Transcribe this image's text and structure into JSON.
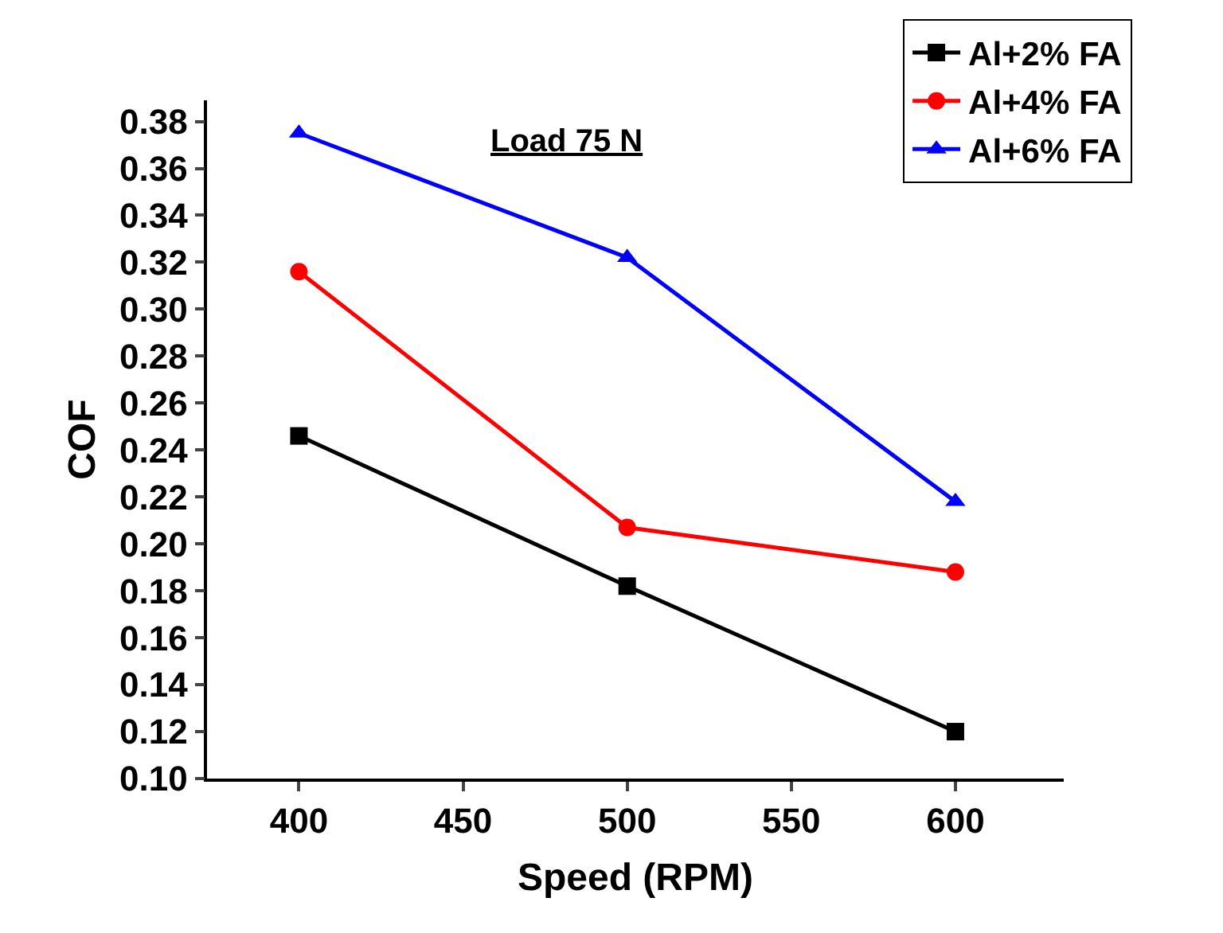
{
  "chart_data": {
    "type": "line",
    "xlabel": "Speed (RPM)",
    "ylabel": "COF",
    "x": [
      400,
      500,
      600
    ],
    "series": [
      {
        "name": "Al+2% FA",
        "color": "#000000",
        "marker": "square",
        "values": [
          0.246,
          0.182,
          0.12
        ]
      },
      {
        "name": "Al+4% FA",
        "color": "#ff0000",
        "marker": "circle",
        "values": [
          0.316,
          0.207,
          0.188
        ]
      },
      {
        "name": "Al+6% FA",
        "color": "#0000ff",
        "marker": "triangle",
        "values": [
          0.375,
          0.322,
          0.218
        ]
      }
    ],
    "xlim": [
      372,
      633
    ],
    "xticks": [
      400,
      450,
      500,
      550,
      600
    ],
    "ylim": [
      0.1,
      0.389
    ],
    "yticks": [
      {
        "value": 0.1,
        "label": "0.10"
      },
      {
        "value": 0.12,
        "label": "0.12"
      },
      {
        "value": 0.14,
        "label": "0.14"
      },
      {
        "value": 0.16,
        "label": "0.16"
      },
      {
        "value": 0.18,
        "label": "0.18"
      },
      {
        "value": 0.2,
        "label": "0.20"
      },
      {
        "value": 0.22,
        "label": "0.22"
      },
      {
        "value": 0.24,
        "label": "0.24"
      },
      {
        "value": 0.26,
        "label": "0.26"
      },
      {
        "value": 0.28,
        "label": "0.28"
      },
      {
        "value": 0.3,
        "label": "0.30"
      },
      {
        "value": 0.32,
        "label": "0.32"
      },
      {
        "value": 0.34,
        "label": "0.34"
      },
      {
        "value": 0.36,
        "label": "0.36"
      },
      {
        "value": 0.38,
        "label": "0.38"
      }
    ],
    "annotations": [
      "Load 75 N"
    ],
    "legend": "top right",
    "line_style": "solid"
  }
}
